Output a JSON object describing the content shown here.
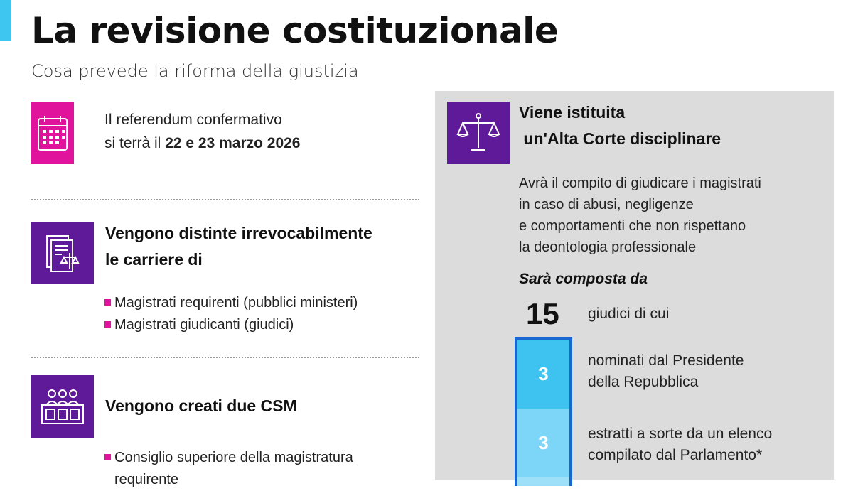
{
  "colors": {
    "accent": "#3ec6f0",
    "pink": "#e0139c",
    "purple": "#5f1a9a",
    "panel": "#dcdcdc",
    "bar_border": "#1a66d0",
    "seg1": "#3ec3f0",
    "seg2": "#7dd6f7"
  },
  "header": {
    "title": "La revisione costituzionale",
    "subtitle": "Cosa prevede la riforma della giustizia"
  },
  "referendum": {
    "icon": "calendar-icon",
    "line1": "Il referendum confermativo",
    "line2_prefix": "si terrà il ",
    "line2_bold": "22 e 23 marzo 2026"
  },
  "carriere": {
    "icon": "documents-scales-icon",
    "heading1": "Vengono distinte irrevocabilmente",
    "heading2": "le carriere di",
    "items": [
      "Magistrati requirenti (pubblici ministeri)",
      "Magistrati giudicanti (giudici)"
    ]
  },
  "csm": {
    "icon": "council-icon",
    "heading": "Vengono creati due CSM",
    "items": [
      "Consiglio superiore della magistratura",
      "requirente"
    ]
  },
  "alta_corte": {
    "icon": "scales-icon",
    "heading1": "Viene istituita",
    "heading2": " un'Alta Corte disciplinare",
    "description": [
      "Avrà il compito di giudicare i magistrati",
      "in caso di abusi, negligenze",
      "e comportamenti che non rispettano",
      "la deontologia professionale"
    ],
    "composition_label": "Sarà composta da",
    "total": "15",
    "total_label": "giudici di cui",
    "groups": [
      {
        "count": "3",
        "line1": "nominati dal Presidente",
        "line2": "della Repubblica"
      },
      {
        "count": "3",
        "line1": "estratti a sorte da un elenco",
        "line2": "compilato dal Parlamento*"
      }
    ]
  }
}
